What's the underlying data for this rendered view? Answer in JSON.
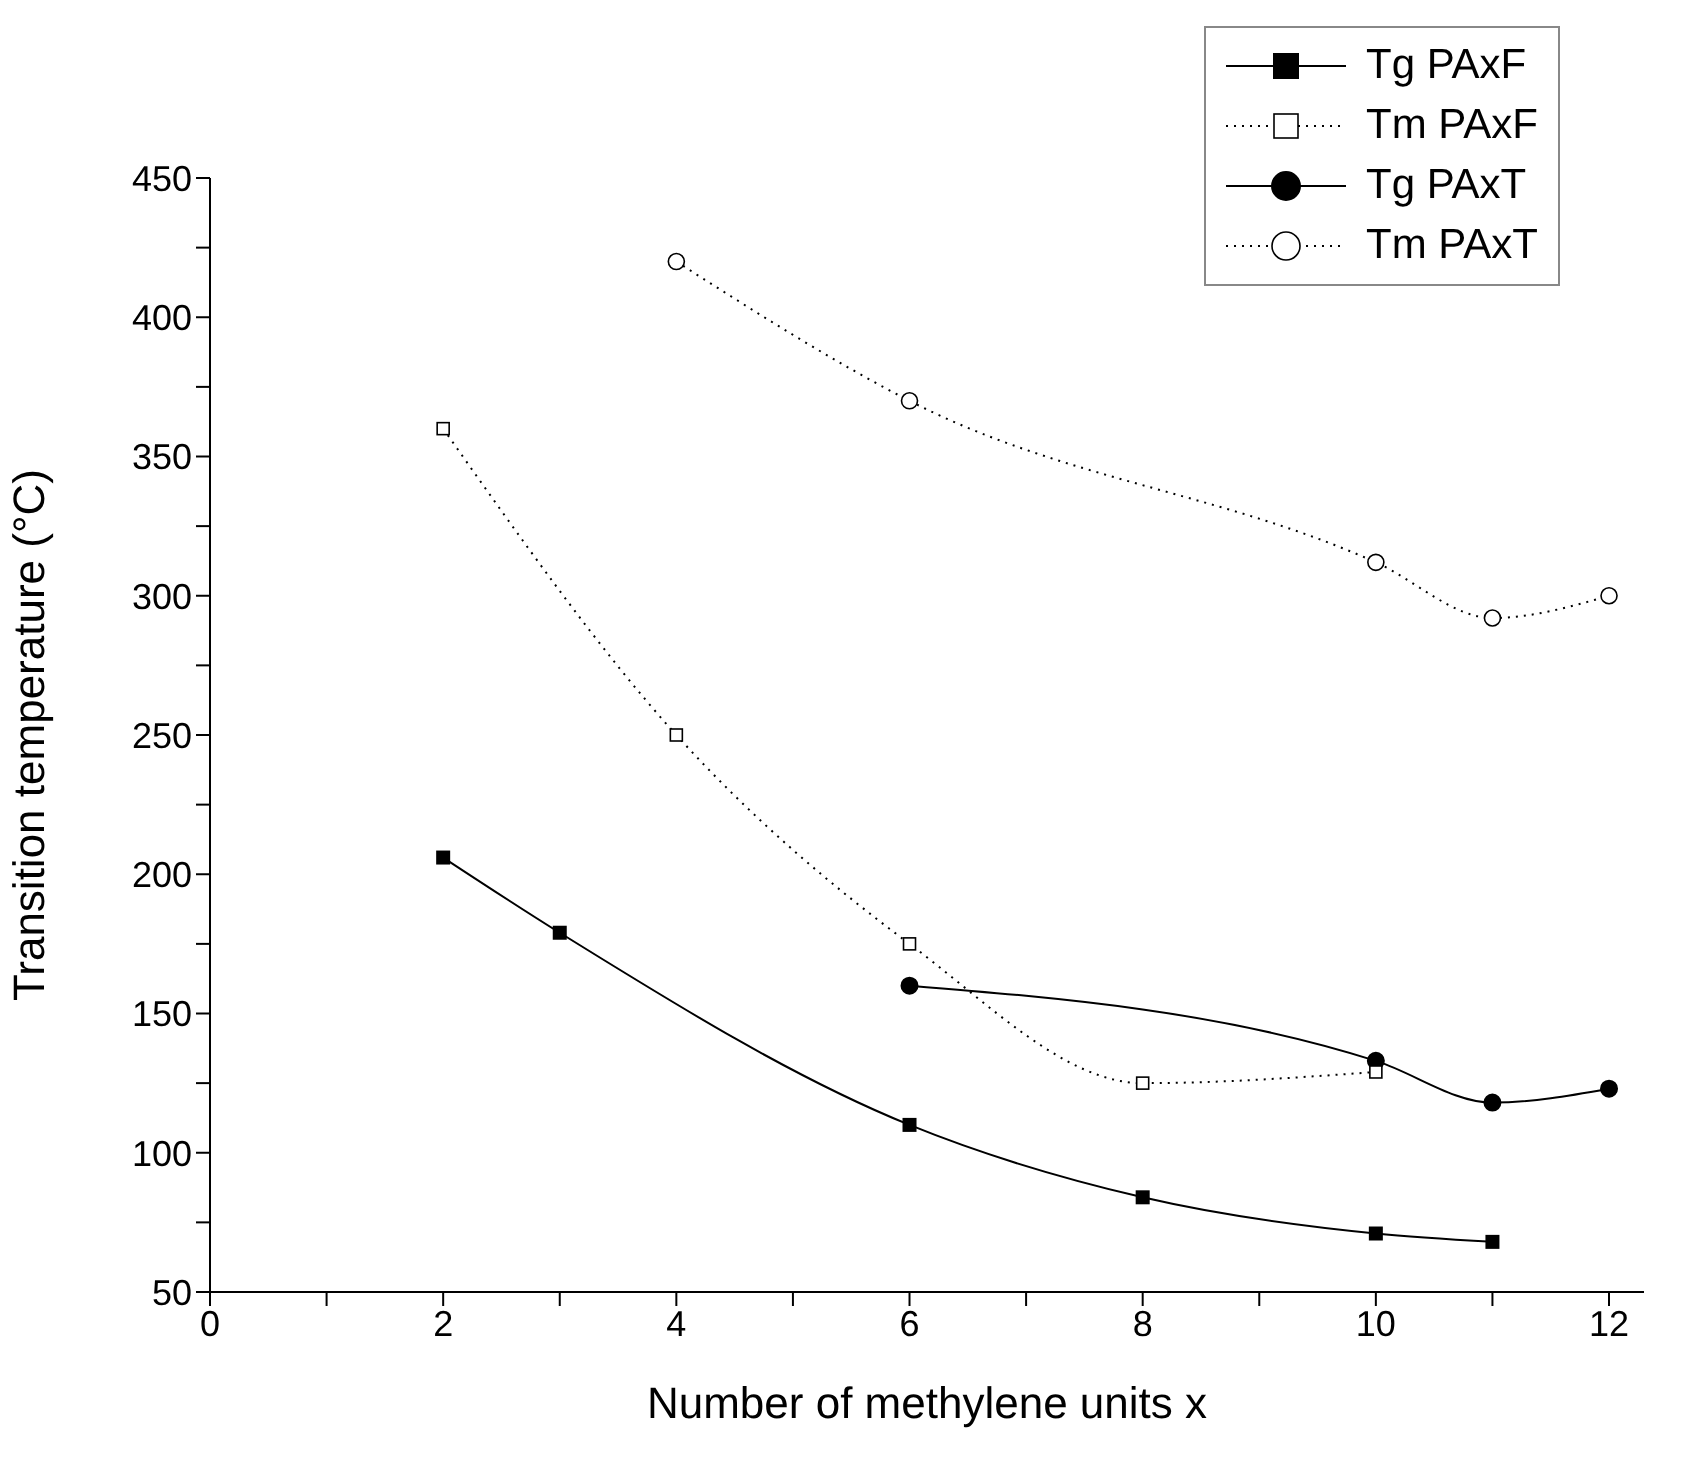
{
  "chart_data": {
    "type": "line",
    "xlabel": "Number of methylene units x",
    "ylabel": "Transition temperature (°C)",
    "xlim": [
      0,
      12.3
    ],
    "xticks": [
      0,
      {
        "value": 1,
        "label": null
      },
      2,
      {
        "value": 3,
        "label": null
      },
      4,
      {
        "value": 5,
        "label": null
      },
      6,
      {
        "value": 7,
        "label": null
      },
      8,
      {
        "value": 9,
        "label": null
      },
      10,
      {
        "value": 11,
        "label": null
      },
      12
    ],
    "ylim": [
      50,
      450
    ],
    "yticks": [
      50,
      {
        "value": 75,
        "label": null
      },
      100,
      {
        "value": 125,
        "label": null
      },
      150,
      {
        "value": 175,
        "label": null
      },
      200,
      {
        "value": 225,
        "label": null
      },
      250,
      {
        "value": 275,
        "label": null
      },
      300,
      {
        "value": 325,
        "label": null
      },
      350,
      {
        "value": 375,
        "label": null
      },
      400,
      {
        "value": 425,
        "label": null
      },
      450
    ],
    "legend": "top right",
    "series": [
      {
        "name": "Tg PAxF",
        "color": "#000000",
        "marker": "square",
        "line_style": "solid",
        "x": [
          2,
          3,
          6,
          8,
          10,
          11
        ],
        "values": [
          206,
          179,
          110,
          84,
          71,
          68
        ]
      },
      {
        "name": "Tm PAxF",
        "color": "#000000",
        "marker": "square",
        "line_style": "dotted",
        "x": [
          2,
          4,
          6,
          8,
          10
        ],
        "values": [
          360,
          250,
          175,
          125,
          129
        ]
      },
      {
        "name": "Tg PAxT",
        "color": "#000000",
        "marker": "circle",
        "line_style": "solid",
        "x": [
          6,
          10,
          11,
          12
        ],
        "values": [
          160,
          133,
          118,
          123
        ]
      },
      {
        "name": "Tm PAxT",
        "color": "#000000",
        "marker": "circle",
        "line_style": "dotted",
        "x": [
          4,
          6,
          10,
          11,
          12
        ],
        "values": [
          420,
          370,
          312,
          292,
          300
        ]
      }
    ]
  }
}
